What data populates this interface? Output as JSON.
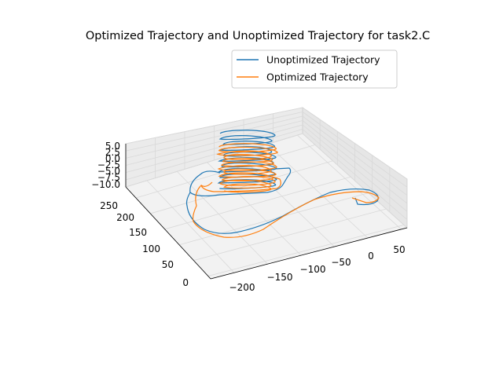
{
  "chart_data": {
    "type": "line",
    "projection": "3d",
    "title": "Optimized Trajectory and Unoptimized Trajectory for task2.C",
    "xlabel": "",
    "ylabel": "",
    "zlabel": "",
    "xlim": [
      -230,
      60
    ],
    "ylim": [
      -10,
      280
    ],
    "zlim": [
      -10,
      5
    ],
    "x_ticks": [
      "−200",
      "−150",
      "−100",
      "−50",
      "0",
      "50"
    ],
    "y_ticks": [
      "0",
      "50",
      "100",
      "150",
      "200",
      "250"
    ],
    "z_ticks": [
      "5.0",
      "2.5",
      "0.0",
      "−2.5",
      "−5.0",
      "−7.5",
      "−10.0"
    ],
    "grid": true,
    "legend_position": "top-right",
    "series": [
      {
        "name": "Unoptimized Trajectory",
        "color": "#1f77b4",
        "description_points": [
          {
            "x": -150,
            "y": 255,
            "z": 5.0
          },
          {
            "x": -100,
            "y": 255,
            "z": -7.0
          },
          {
            "x": -200,
            "y": 200,
            "z": -8.0
          },
          {
            "x": -180,
            "y": 130,
            "z": -9.5
          },
          {
            "x": -110,
            "y": 90,
            "z": -9.0
          },
          {
            "x": -40,
            "y": 80,
            "z": -8.5
          },
          {
            "x": 30,
            "y": 60,
            "z": -8.5
          },
          {
            "x": 45,
            "y": 40,
            "z": -9.0
          },
          {
            "x": 20,
            "y": 25,
            "z": -9.5
          }
        ]
      },
      {
        "name": "Optimized Trajectory",
        "color": "#ff7f0e",
        "description_points": [
          {
            "x": -140,
            "y": 250,
            "z": 3.0
          },
          {
            "x": -100,
            "y": 250,
            "z": -6.0
          },
          {
            "x": -190,
            "y": 190,
            "z": -9.0
          },
          {
            "x": -170,
            "y": 120,
            "z": -9.8
          },
          {
            "x": -100,
            "y": 80,
            "z": -9.5
          },
          {
            "x": -30,
            "y": 70,
            "z": -9.0
          },
          {
            "x": 30,
            "y": 55,
            "z": -9.0
          },
          {
            "x": 40,
            "y": 35,
            "z": -9.5
          }
        ]
      }
    ]
  }
}
